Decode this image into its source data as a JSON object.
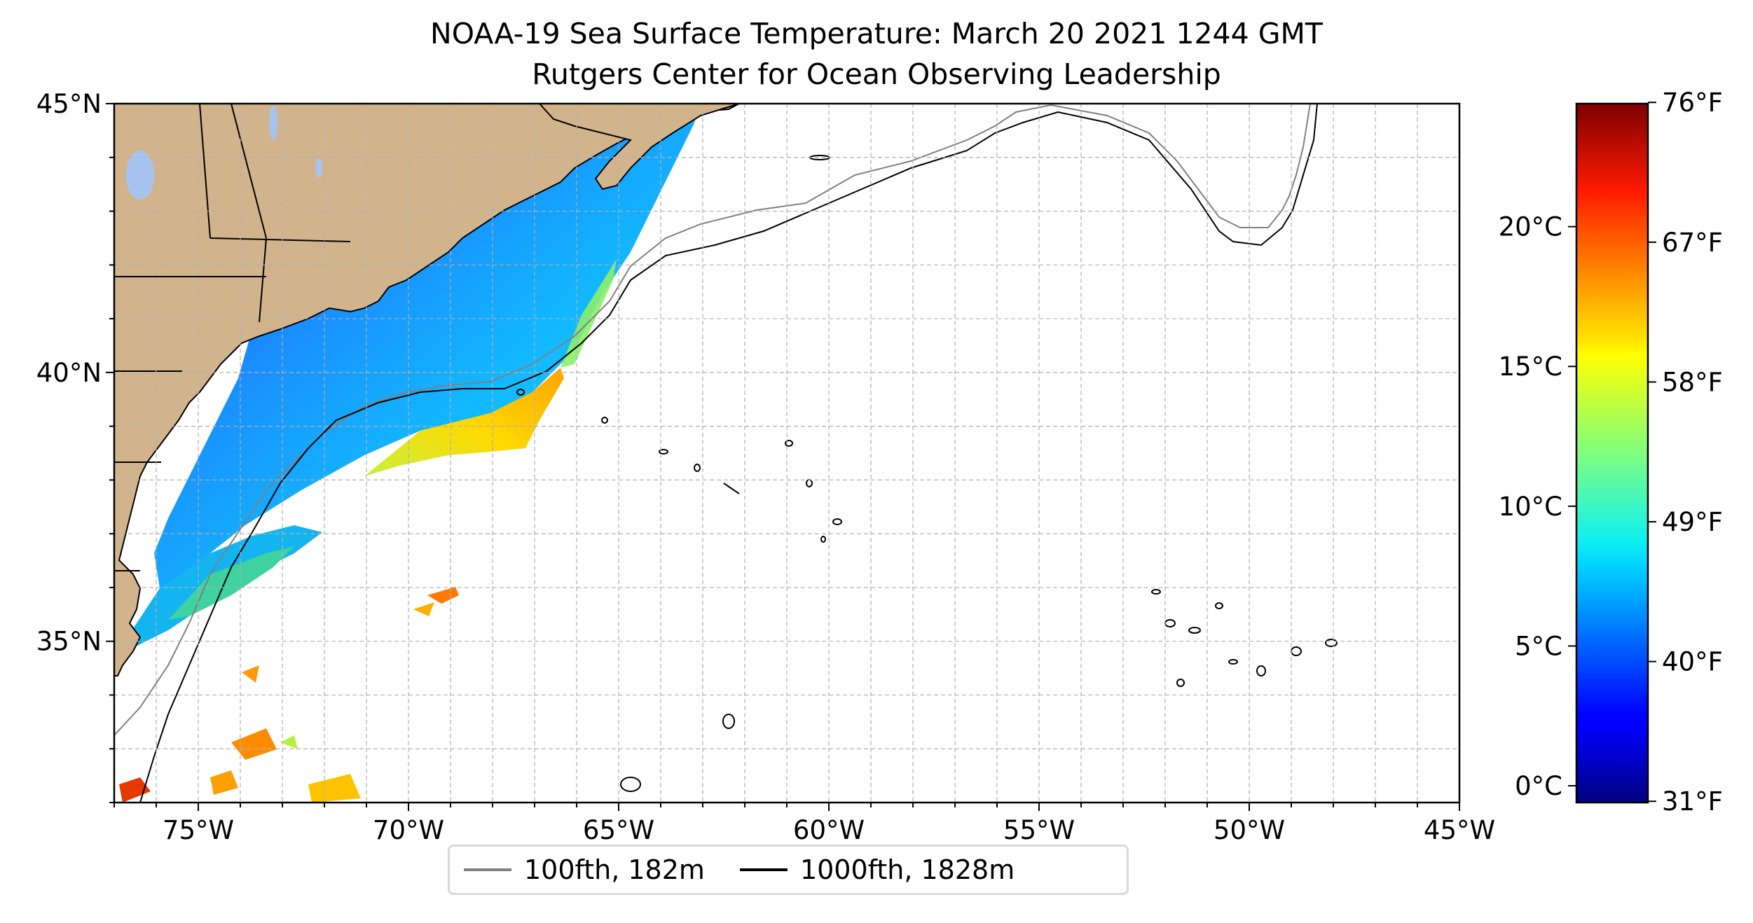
{
  "figure": {
    "title": "NOAA-19 Sea Surface Temperature: March 20 2021 1244 GMT",
    "subtitle": "Rutgers Center for Ocean Observing Leadership"
  },
  "map": {
    "extent_lon": [
      -77,
      -45
    ],
    "extent_lat": [
      32,
      45
    ],
    "lon_ticks": [
      {
        "value": -75,
        "label": "75°W"
      },
      {
        "value": -70,
        "label": "70°W"
      },
      {
        "value": -65,
        "label": "65°W"
      },
      {
        "value": -60,
        "label": "60°W"
      },
      {
        "value": -55,
        "label": "55°W"
      },
      {
        "value": -50,
        "label": "50°W"
      },
      {
        "value": -45,
        "label": "45°W"
      }
    ],
    "lat_ticks": [
      {
        "value": 35,
        "label": "35°N"
      },
      {
        "value": 40,
        "label": "40°N"
      },
      {
        "value": 45,
        "label": "45°N"
      }
    ],
    "gridlines": true,
    "land_color": "#d2b48c",
    "isobath_100_color": "#808080",
    "isobath_1000_color": "#000000"
  },
  "legend": {
    "items": [
      {
        "label": "100fth, 182m",
        "color": "#808080"
      },
      {
        "label": "1000fth, 1828m",
        "color": "#000000"
      }
    ]
  },
  "colorbar": {
    "colormap": "jet",
    "range_c": [
      -0.6,
      24.4
    ],
    "celsius_ticks": [
      {
        "value": 0,
        "label": "0°C"
      },
      {
        "value": 5,
        "label": "5°C"
      },
      {
        "value": 10,
        "label": "10°C"
      },
      {
        "value": 15,
        "label": "15°C"
      },
      {
        "value": 20,
        "label": "20°C"
      }
    ],
    "fahrenheit_ticks": [
      {
        "value": 31,
        "label": "31°F"
      },
      {
        "value": 40,
        "label": "40°F"
      },
      {
        "value": 49,
        "label": "49°F"
      },
      {
        "value": 58,
        "label": "58°F"
      },
      {
        "value": 67,
        "label": "67°F"
      },
      {
        "value": 76,
        "label": "76°F"
      }
    ]
  }
}
